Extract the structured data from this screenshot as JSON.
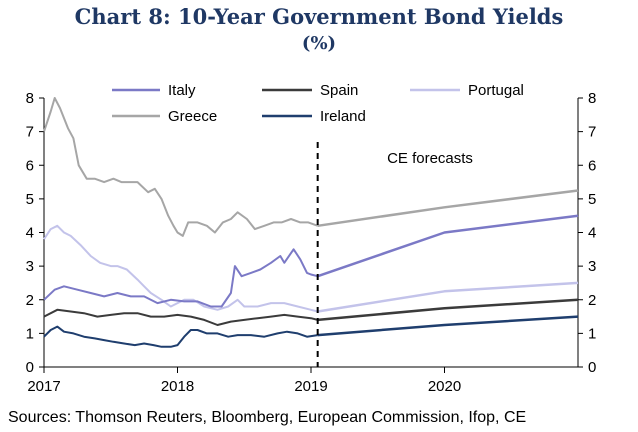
{
  "title": "Chart 8: 10-Year Government Bond Yields",
  "subtitle": "(%)",
  "source": "Sources: Thomson Reuters, Bloomberg, European Commission, Ifop, CE",
  "colors": {
    "italy": "#7b79c6",
    "spain": "#3b3b3b",
    "portugal": "#c3c3ea",
    "greece": "#a6a6a6",
    "ireland": "#1f3e6e",
    "title": "#1f3864"
  },
  "chart_data": {
    "type": "line",
    "title": "Chart 8: 10-Year Government Bond Yields",
    "subtitle": "(%)",
    "xlabel": "",
    "ylabel": "",
    "xlim": [
      2017.0,
      2021.0
    ],
    "ylim": [
      0,
      8
    ],
    "y_ticks": [
      "0",
      "1",
      "2",
      "3",
      "4",
      "5",
      "6",
      "7",
      "8"
    ],
    "x_ticks": [
      {
        "value": 2017,
        "label": "2017"
      },
      {
        "value": 2018,
        "label": "2018"
      },
      {
        "value": 2019,
        "label": "2019"
      },
      {
        "value": 2020,
        "label": "2020"
      }
    ],
    "forecast_start": 2019.05,
    "annotation": "CE forecasts",
    "legend_position": "top",
    "grid": false,
    "series": [
      {
        "name": "Italy",
        "key": "italy",
        "history": [
          [
            2017.0,
            2.0
          ],
          [
            2017.08,
            2.3
          ],
          [
            2017.15,
            2.4
          ],
          [
            2017.25,
            2.3
          ],
          [
            2017.35,
            2.2
          ],
          [
            2017.45,
            2.1
          ],
          [
            2017.55,
            2.2
          ],
          [
            2017.65,
            2.1
          ],
          [
            2017.75,
            2.1
          ],
          [
            2017.85,
            1.9
          ],
          [
            2017.95,
            2.0
          ],
          [
            2018.05,
            1.95
          ],
          [
            2018.15,
            1.95
          ],
          [
            2018.25,
            1.8
          ],
          [
            2018.33,
            1.8
          ],
          [
            2018.4,
            2.2
          ],
          [
            2018.43,
            3.0
          ],
          [
            2018.48,
            2.7
          ],
          [
            2018.55,
            2.8
          ],
          [
            2018.62,
            2.9
          ],
          [
            2018.7,
            3.1
          ],
          [
            2018.77,
            3.3
          ],
          [
            2018.8,
            3.1
          ],
          [
            2018.87,
            3.5
          ],
          [
            2018.92,
            3.2
          ],
          [
            2018.97,
            2.8
          ],
          [
            2019.0,
            2.75
          ],
          [
            2019.05,
            2.7
          ]
        ],
        "forecast": [
          [
            2019.05,
            2.7
          ],
          [
            2020.0,
            4.0
          ],
          [
            2021.0,
            4.5
          ]
        ]
      },
      {
        "name": "Spain",
        "key": "spain",
        "history": [
          [
            2017.0,
            1.5
          ],
          [
            2017.1,
            1.7
          ],
          [
            2017.2,
            1.65
          ],
          [
            2017.3,
            1.6
          ],
          [
            2017.4,
            1.5
          ],
          [
            2017.5,
            1.55
          ],
          [
            2017.6,
            1.6
          ],
          [
            2017.7,
            1.6
          ],
          [
            2017.8,
            1.5
          ],
          [
            2017.9,
            1.5
          ],
          [
            2018.0,
            1.55
          ],
          [
            2018.1,
            1.5
          ],
          [
            2018.2,
            1.4
          ],
          [
            2018.3,
            1.25
          ],
          [
            2018.4,
            1.35
          ],
          [
            2018.5,
            1.4
          ],
          [
            2018.6,
            1.45
          ],
          [
            2018.7,
            1.5
          ],
          [
            2018.8,
            1.55
          ],
          [
            2018.9,
            1.5
          ],
          [
            2019.0,
            1.45
          ],
          [
            2019.05,
            1.4
          ]
        ],
        "forecast": [
          [
            2019.05,
            1.4
          ],
          [
            2020.0,
            1.75
          ],
          [
            2021.0,
            2.0
          ]
        ]
      },
      {
        "name": "Portugal",
        "key": "portugal",
        "history": [
          [
            2017.0,
            3.8
          ],
          [
            2017.05,
            4.1
          ],
          [
            2017.1,
            4.2
          ],
          [
            2017.15,
            4.0
          ],
          [
            2017.2,
            3.9
          ],
          [
            2017.28,
            3.6
          ],
          [
            2017.35,
            3.3
          ],
          [
            2017.42,
            3.1
          ],
          [
            2017.5,
            3.0
          ],
          [
            2017.55,
            3.0
          ],
          [
            2017.62,
            2.9
          ],
          [
            2017.7,
            2.6
          ],
          [
            2017.75,
            2.4
          ],
          [
            2017.8,
            2.2
          ],
          [
            2017.88,
            2.0
          ],
          [
            2017.95,
            1.8
          ],
          [
            2018.0,
            1.9
          ],
          [
            2018.05,
            2.0
          ],
          [
            2018.12,
            2.0
          ],
          [
            2018.2,
            1.8
          ],
          [
            2018.3,
            1.7
          ],
          [
            2018.38,
            1.8
          ],
          [
            2018.45,
            2.0
          ],
          [
            2018.5,
            1.8
          ],
          [
            2018.6,
            1.8
          ],
          [
            2018.7,
            1.9
          ],
          [
            2018.8,
            1.9
          ],
          [
            2018.9,
            1.8
          ],
          [
            2019.0,
            1.7
          ],
          [
            2019.05,
            1.65
          ]
        ],
        "forecast": [
          [
            2019.05,
            1.65
          ],
          [
            2020.0,
            2.25
          ],
          [
            2021.0,
            2.5
          ]
        ]
      },
      {
        "name": "Greece",
        "key": "greece",
        "history": [
          [
            2017.0,
            7.0
          ],
          [
            2017.05,
            7.6
          ],
          [
            2017.08,
            8.0
          ],
          [
            2017.12,
            7.7
          ],
          [
            2017.18,
            7.1
          ],
          [
            2017.22,
            6.8
          ],
          [
            2017.26,
            6.0
          ],
          [
            2017.32,
            5.6
          ],
          [
            2017.38,
            5.6
          ],
          [
            2017.45,
            5.5
          ],
          [
            2017.52,
            5.6
          ],
          [
            2017.58,
            5.5
          ],
          [
            2017.65,
            5.5
          ],
          [
            2017.7,
            5.5
          ],
          [
            2017.78,
            5.2
          ],
          [
            2017.83,
            5.3
          ],
          [
            2017.88,
            5.0
          ],
          [
            2017.93,
            4.5
          ],
          [
            2017.97,
            4.2
          ],
          [
            2018.0,
            4.0
          ],
          [
            2018.04,
            3.9
          ],
          [
            2018.08,
            4.3
          ],
          [
            2018.15,
            4.3
          ],
          [
            2018.22,
            4.2
          ],
          [
            2018.28,
            4.0
          ],
          [
            2018.34,
            4.3
          ],
          [
            2018.4,
            4.4
          ],
          [
            2018.45,
            4.6
          ],
          [
            2018.52,
            4.4
          ],
          [
            2018.58,
            4.1
          ],
          [
            2018.65,
            4.2
          ],
          [
            2018.72,
            4.3
          ],
          [
            2018.78,
            4.3
          ],
          [
            2018.85,
            4.4
          ],
          [
            2018.92,
            4.3
          ],
          [
            2018.98,
            4.3
          ],
          [
            2019.05,
            4.2
          ]
        ],
        "forecast": [
          [
            2019.05,
            4.2
          ],
          [
            2020.0,
            4.75
          ],
          [
            2021.0,
            5.25
          ]
        ]
      },
      {
        "name": "Ireland",
        "key": "ireland",
        "history": [
          [
            2017.0,
            0.9
          ],
          [
            2017.05,
            1.1
          ],
          [
            2017.1,
            1.2
          ],
          [
            2017.15,
            1.05
          ],
          [
            2017.22,
            1.0
          ],
          [
            2017.3,
            0.9
          ],
          [
            2017.38,
            0.85
          ],
          [
            2017.45,
            0.8
          ],
          [
            2017.52,
            0.75
          ],
          [
            2017.6,
            0.7
          ],
          [
            2017.68,
            0.65
          ],
          [
            2017.75,
            0.7
          ],
          [
            2017.82,
            0.65
          ],
          [
            2017.88,
            0.6
          ],
          [
            2017.95,
            0.6
          ],
          [
            2018.0,
            0.65
          ],
          [
            2018.05,
            0.9
          ],
          [
            2018.1,
            1.1
          ],
          [
            2018.15,
            1.1
          ],
          [
            2018.22,
            1.0
          ],
          [
            2018.3,
            1.0
          ],
          [
            2018.38,
            0.9
          ],
          [
            2018.45,
            0.95
          ],
          [
            2018.55,
            0.95
          ],
          [
            2018.65,
            0.9
          ],
          [
            2018.75,
            1.0
          ],
          [
            2018.82,
            1.05
          ],
          [
            2018.9,
            1.0
          ],
          [
            2018.97,
            0.9
          ],
          [
            2019.05,
            0.95
          ]
        ],
        "forecast": [
          [
            2019.05,
            0.95
          ],
          [
            2020.0,
            1.25
          ],
          [
            2021.0,
            1.5
          ]
        ]
      }
    ]
  }
}
